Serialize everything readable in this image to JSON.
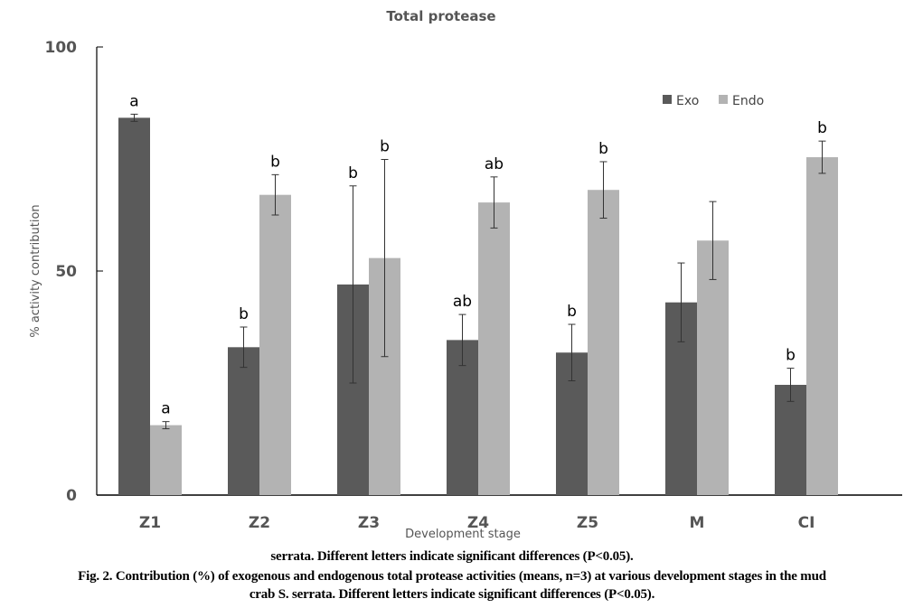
{
  "chart_data": {
    "type": "bar",
    "title": "Total protease",
    "xlabel": "Development stage",
    "ylabel": "% activity contribution",
    "ylim": [
      0,
      100
    ],
    "yticks": [
      "0",
      "50",
      "100"
    ],
    "grid": false,
    "legend_position": "top-right",
    "categories": [
      "Z1",
      "Z2",
      "Z3",
      "Z4",
      "Z5",
      "M",
      "CI"
    ],
    "series": [
      {
        "name": "Exo",
        "color": "#5a5a5a",
        "values": [
          84.2,
          33.0,
          47.0,
          34.6,
          31.8,
          43.0,
          24.6
        ],
        "errors": [
          0.8,
          4.5,
          22.0,
          5.7,
          6.3,
          8.8,
          3.7
        ],
        "letters": [
          "a",
          "b",
          "b",
          "ab",
          "b",
          "",
          "b"
        ]
      },
      {
        "name": "Endo",
        "color": "#b3b3b3",
        "values": [
          15.6,
          67.0,
          52.9,
          65.3,
          68.1,
          56.8,
          75.4
        ],
        "errors": [
          0.8,
          4.5,
          22.0,
          5.7,
          6.3,
          8.7,
          3.6
        ],
        "letters": [
          "a",
          "b",
          "b",
          "ab",
          "b",
          "",
          "b"
        ]
      }
    ]
  },
  "caption": {
    "line0": "serrata.  Different letters indicate significant differences (P<0.05).",
    "line1": "Fig. 2. Contribution (%) of exogenous and endogenous total protease activities (means, n=3) at various development stages in the mud",
    "line2": "crab S. serrata.  Different letters indicate significant differences (P<0.05)."
  }
}
